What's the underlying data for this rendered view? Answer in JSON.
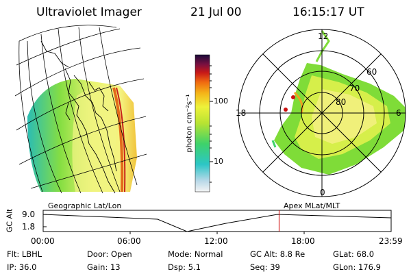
{
  "header": {
    "title": "Ultraviolet Imager",
    "date": "21 Jul 00",
    "time": "16:15:17 UT"
  },
  "colorbar": {
    "label": "photon cm⁻²s⁻¹",
    "ticks": [
      "100",
      "10"
    ]
  },
  "left_panel": {
    "caption": "Geographic Lat/Lon"
  },
  "right_panel": {
    "caption": "Apex MLat/MLT",
    "lat_labels": [
      "60",
      "70",
      "80"
    ],
    "mlt_labels": [
      "12",
      "18",
      "6",
      "0"
    ]
  },
  "timeline": {
    "ylabel": "GC Alt",
    "yticks": [
      "9.0",
      "1.8"
    ],
    "xticks": [
      "00:00",
      "06:00",
      "12:00",
      "18:00",
      "23:59"
    ],
    "current_fraction": 0.678
  },
  "status": {
    "row1": [
      {
        "label": "Flt:",
        "value": "LBHL"
      },
      {
        "label": "Door:",
        "value": "Open"
      },
      {
        "label": "Mode:",
        "value": "Normal"
      },
      {
        "label": "GC Alt:",
        "value": "8.8 Re"
      },
      {
        "label": "GLat:",
        "value": "68.0"
      }
    ],
    "row2": [
      {
        "label": "IP:",
        "value": "36.0"
      },
      {
        "label": "Gain:",
        "value": "13"
      },
      {
        "label": "Dsp:",
        "value": "5.1"
      },
      {
        "label": "Seq:",
        "value": "39"
      },
      {
        "label": "GLon:",
        "value": "176.9"
      }
    ]
  },
  "colors": {
    "marker": "#cc0000"
  }
}
